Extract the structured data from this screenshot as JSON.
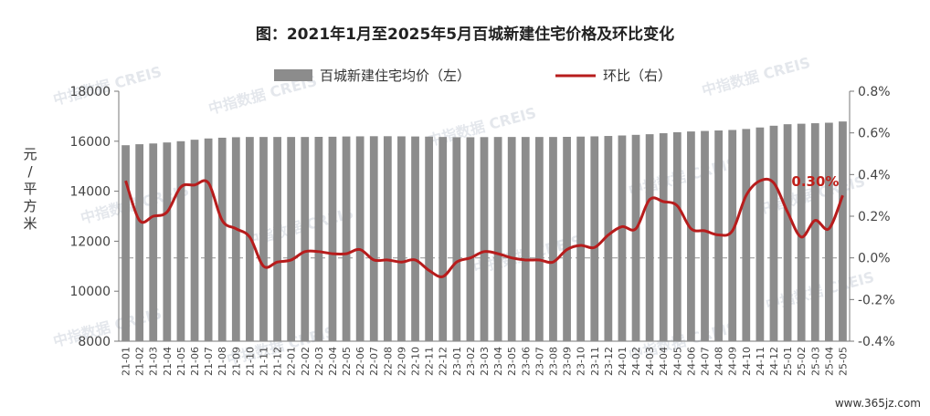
{
  "chart_data": {
    "type": "bar+line",
    "title": "图：2021年1月至2025年5月百城新建住宅价格及环比变化",
    "ylabel_left": "元/平方米",
    "ylim_left": [
      8000,
      18000
    ],
    "yticks_left": [
      "8000",
      "10000",
      "12000",
      "14000",
      "16000",
      "18000"
    ],
    "ylim_right": [
      -0.4,
      0.8
    ],
    "yticks_right": [
      "-0.4%",
      "-0.2%",
      "0.0%",
      "0.2%",
      "0.4%",
      "0.6%",
      "0.8%"
    ],
    "categories": [
      "21-01",
      "21-02",
      "21-03",
      "21-04",
      "21-05",
      "21-06",
      "21-07",
      "21-08",
      "21-09",
      "21-10",
      "21-11",
      "21-12",
      "22-01",
      "22-02",
      "22-03",
      "22-04",
      "22-05",
      "22-06",
      "22-07",
      "22-08",
      "22-09",
      "22-10",
      "22-11",
      "22-12",
      "23-01",
      "23-02",
      "23-03",
      "23-04",
      "23-05",
      "23-06",
      "23-07",
      "23-08",
      "23-09",
      "23-10",
      "23-11",
      "23-12",
      "24-01",
      "24-02",
      "24-03",
      "24-04",
      "24-05",
      "24-06",
      "24-07",
      "24-08",
      "24-09",
      "24-10",
      "24-11",
      "24-12",
      "25-01",
      "25-02",
      "25-03",
      "25-04",
      "25-05"
    ],
    "series": [
      {
        "name": "百城新建住宅均价（左）",
        "kind": "bar",
        "axis": "left",
        "color": "#8c8c8c",
        "values": [
          15840,
          15880,
          15910,
          15950,
          16000,
          16060,
          16110,
          16140,
          16160,
          16170,
          16170,
          16170,
          16170,
          16170,
          16175,
          16180,
          16190,
          16195,
          16200,
          16200,
          16195,
          16190,
          16185,
          16170,
          16160,
          16160,
          16165,
          16170,
          16170,
          16170,
          16170,
          16170,
          16175,
          16185,
          16195,
          16210,
          16230,
          16255,
          16280,
          16320,
          16360,
          16390,
          16410,
          16430,
          16450,
          16490,
          16550,
          16620,
          16680,
          16700,
          16720,
          16740,
          16790
        ]
      },
      {
        "name": "环比（右）",
        "kind": "line",
        "axis": "right",
        "color": "#b71c1c",
        "values": [
          0.37,
          0.18,
          0.2,
          0.22,
          0.34,
          0.35,
          0.36,
          0.18,
          0.14,
          0.1,
          -0.04,
          -0.02,
          -0.01,
          0.03,
          0.03,
          0.02,
          0.02,
          0.04,
          -0.01,
          -0.01,
          -0.02,
          -0.01,
          -0.06,
          -0.09,
          -0.02,
          0.0,
          0.03,
          0.02,
          0.0,
          -0.01,
          -0.01,
          -0.02,
          0.04,
          0.06,
          0.05,
          0.11,
          0.15,
          0.14,
          0.28,
          0.27,
          0.25,
          0.14,
          0.13,
          0.11,
          0.13,
          0.3,
          0.37,
          0.36,
          0.22,
          0.1,
          0.18,
          0.14,
          0.3
        ]
      }
    ],
    "annotation": "0.30%",
    "legend_position": "top-center",
    "zero_line_right": true
  },
  "watermark": "中指数据 CREIS",
  "source_site": "www.365jz.com",
  "theme": {
    "bar_color": "#8c8c8c",
    "line_color": "#b71c1c",
    "zero_line_color": "#9e9e9e"
  }
}
